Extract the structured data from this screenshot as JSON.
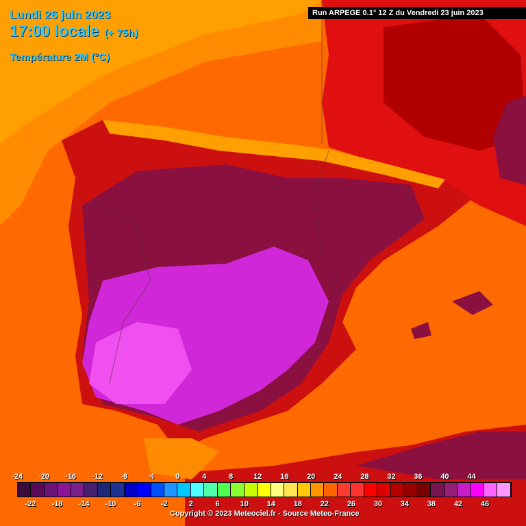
{
  "header": {
    "date": "Lundi 26 juin 2023",
    "time": "17:00 locale",
    "lead": "(+ 75h)",
    "variable": "Température 2M (°C)",
    "run": "Run ARPEGE 0.1° 12 Z du Vendredi 23 juin 2023"
  },
  "legend": {
    "bins": [
      {
        "from": -24,
        "color": "#3c0a3c"
      },
      {
        "from": -22,
        "color": "#5a0a5a"
      },
      {
        "from": -20,
        "color": "#6e1478"
      },
      {
        "from": -18,
        "color": "#8c1496"
      },
      {
        "from": -16,
        "color": "#7a1e8c"
      },
      {
        "from": -14,
        "color": "#4a1e6e"
      },
      {
        "from": -12,
        "color": "#1e2878"
      },
      {
        "from": -10,
        "color": "#1e3296"
      },
      {
        "from": -8,
        "color": "#0000c8"
      },
      {
        "from": -6,
        "color": "#0000ff"
      },
      {
        "from": -4,
        "color": "#0050ff"
      },
      {
        "from": -2,
        "color": "#1e96ff"
      },
      {
        "from": 0,
        "color": "#00c8ff"
      },
      {
        "from": 2,
        "color": "#50ffff"
      },
      {
        "from": 4,
        "color": "#50ffaa"
      },
      {
        "from": 6,
        "color": "#50ff50"
      },
      {
        "from": 8,
        "color": "#8cff32"
      },
      {
        "from": 10,
        "color": "#c8ff00"
      },
      {
        "from": 12,
        "color": "#ffff00"
      },
      {
        "from": 14,
        "color": "#ffff80"
      },
      {
        "from": 16,
        "color": "#ffe650"
      },
      {
        "from": 18,
        "color": "#ffc800"
      },
      {
        "from": 20,
        "color": "#ff9600"
      },
      {
        "from": 22,
        "color": "#ff6400"
      },
      {
        "from": 24,
        "color": "#ff3c32"
      },
      {
        "from": 26,
        "color": "#ff3232"
      },
      {
        "from": 28,
        "color": "#ff0000"
      },
      {
        "from": 30,
        "color": "#dc0000"
      },
      {
        "from": 32,
        "color": "#b40000"
      },
      {
        "from": 34,
        "color": "#960000"
      },
      {
        "from": 36,
        "color": "#780000"
      },
      {
        "from": 38,
        "color": "#781450"
      },
      {
        "from": 40,
        "color": "#961e78"
      },
      {
        "from": 42,
        "color": "#c81ec8"
      },
      {
        "from": 44,
        "color": "#ff00ff"
      },
      {
        "from": 46,
        "color": "#ff64ff"
      },
      {
        "from": 48,
        "color": "#ff96ff"
      }
    ],
    "ticks_top": [
      "-24",
      "-20",
      "-16",
      "-12",
      "-8",
      "-4",
      "0",
      "4",
      "8",
      "12",
      "16",
      "20",
      "24",
      "28",
      "32",
      "36",
      "40",
      "44"
    ],
    "ticks_bottom": [
      "-22",
      "-18",
      "-14",
      "-10",
      "-6",
      "-2",
      "2",
      "6",
      "10",
      "14",
      "18",
      "22",
      "26",
      "30",
      "34",
      "38",
      "42",
      "46"
    ]
  },
  "copyright": "Copyright © 2023 Meteociel.fr - Source Meteo-France",
  "colors": {
    "sea_warm": "#ff6a00",
    "sea_mild": "#ff8c00",
    "land_hot": "#cc1010",
    "land_very_hot": "#8a1040",
    "land_extreme": "#e030e8",
    "cool_coast": "#ffa000",
    "title_text": "#2ec8ff"
  }
}
